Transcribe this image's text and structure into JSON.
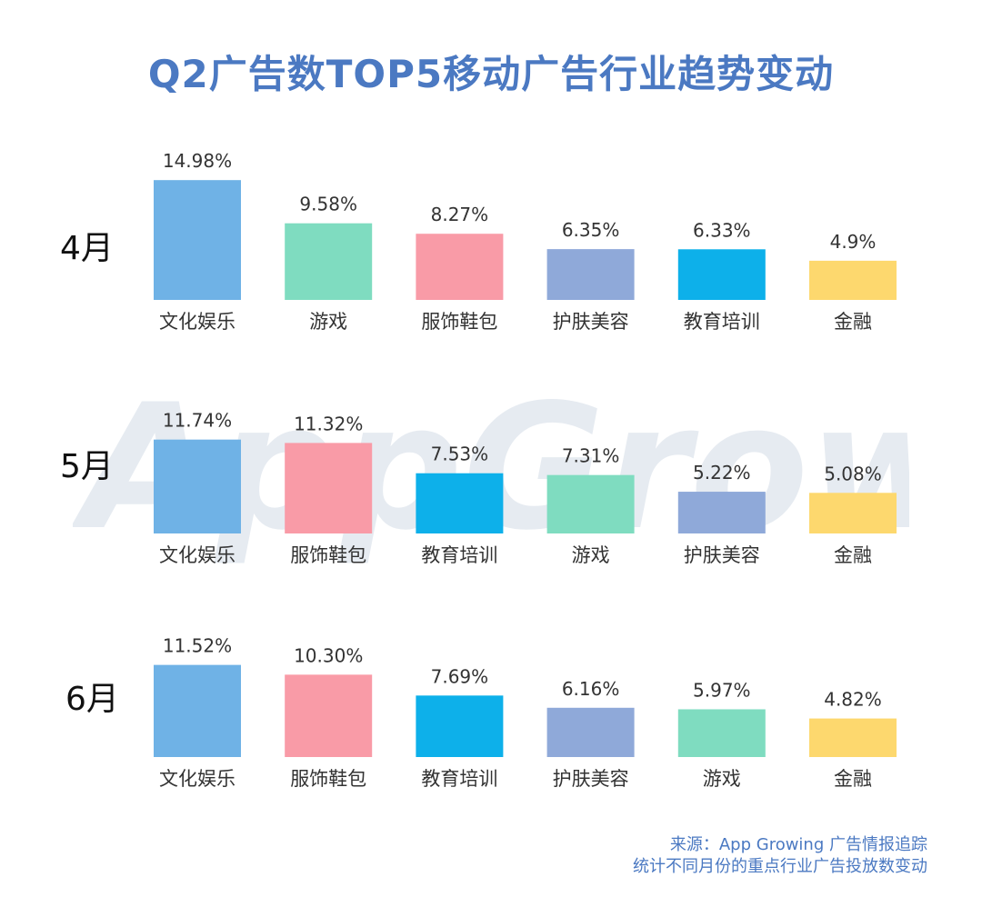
{
  "title": "Q2广告数TOP5移动广告行业趋势变动",
  "watermark": "AppGrowing",
  "footer": {
    "source": "来源：App Growing 广告情报追踪",
    "note": "统计不同月份的重点行业广告投放数变动"
  },
  "colors": {
    "文化娱乐": "#6fb2e6",
    "游戏": "#7fdcc0",
    "服饰鞋包": "#f99ba7",
    "护肤美容": "#8fa9d9",
    "教育培训": "#0db0ea",
    "金融": "#fdd86e"
  },
  "chart_data": [
    {
      "type": "bar",
      "panel_label": "4月",
      "categories": [
        "文化娱乐",
        "游戏",
        "服饰鞋包",
        "护肤美容",
        "教育培训",
        "金融"
      ],
      "values": [
        14.98,
        9.58,
        8.27,
        6.35,
        6.33,
        4.9
      ],
      "value_labels": [
        "14.98%",
        "9.58%",
        "8.27%",
        "6.35%",
        "6.33%",
        "4.9%"
      ]
    },
    {
      "type": "bar",
      "panel_label": "5月",
      "categories": [
        "文化娱乐",
        "服饰鞋包",
        "教育培训",
        "游戏",
        "护肤美容",
        "金融"
      ],
      "values": [
        11.74,
        11.32,
        7.53,
        7.31,
        5.22,
        5.08
      ],
      "value_labels": [
        "11.74%",
        "11.32%",
        "7.53%",
        "7.31%",
        "5.22%",
        "5.08%"
      ]
    },
    {
      "type": "bar",
      "panel_label": "6月",
      "categories": [
        "文化娱乐",
        "服饰鞋包",
        "教育培训",
        "护肤美容",
        "游戏",
        "金融"
      ],
      "values": [
        11.52,
        10.3,
        7.69,
        6.16,
        5.97,
        4.82
      ],
      "value_labels": [
        "11.52%",
        "10.30%",
        "7.69%",
        "6.16%",
        "5.97%",
        "4.82%"
      ]
    }
  ]
}
